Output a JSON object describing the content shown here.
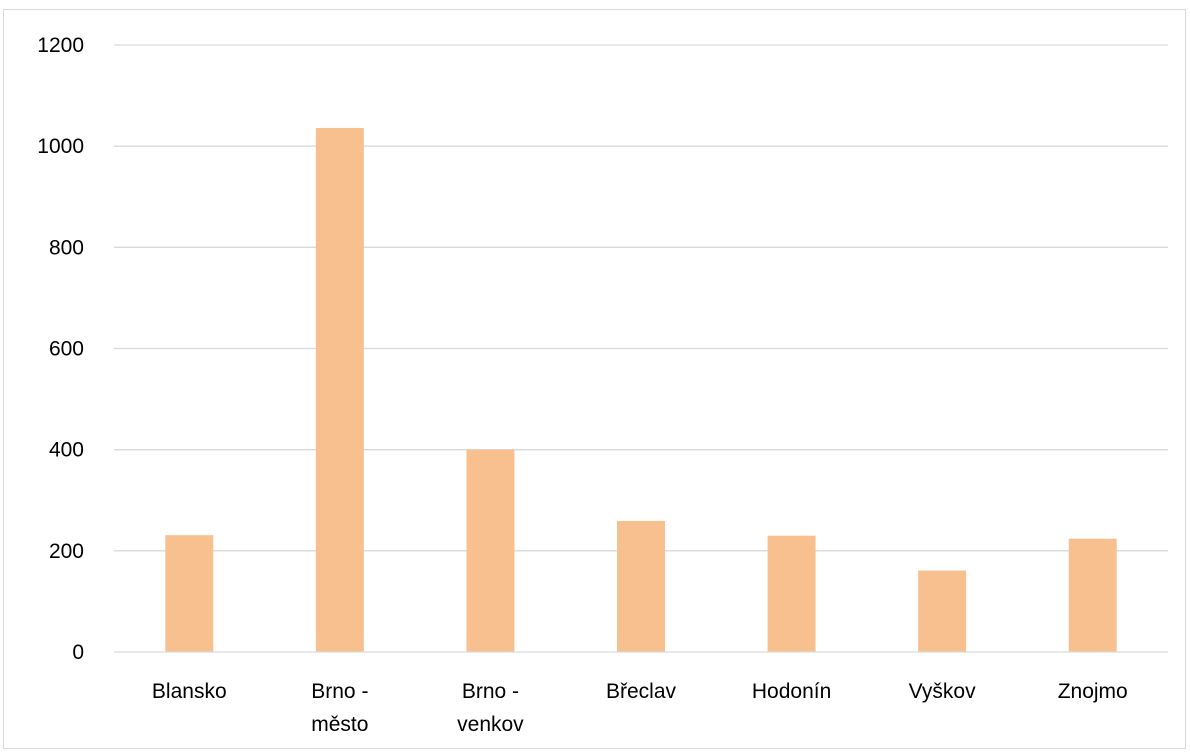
{
  "chart_data": {
    "type": "bar",
    "categories": [
      [
        "Blansko"
      ],
      [
        "Brno -",
        "město"
      ],
      [
        "Brno -",
        "venkov"
      ],
      [
        "Břeclav"
      ],
      [
        "Hodonín"
      ],
      [
        "Vyškov"
      ],
      [
        "Znojmo"
      ]
    ],
    "values": [
      231,
      1036,
      400,
      259,
      230,
      161,
      224
    ],
    "ylim": [
      0,
      1200
    ],
    "yticks": [
      "0",
      "200",
      "400",
      "600",
      "800",
      "1000",
      "1200"
    ],
    "grid": true,
    "legend": "none",
    "title": "",
    "xlabel": "",
    "ylabel": "",
    "colors": {
      "bar": "#F9C08F",
      "grid": "#d9d9d9",
      "axis": "#d9d9d9"
    }
  }
}
